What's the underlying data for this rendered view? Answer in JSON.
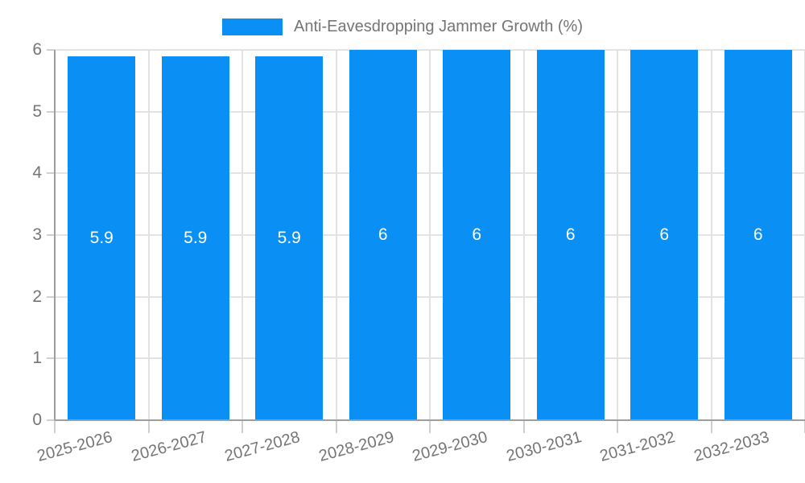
{
  "chart_data": {
    "type": "bar",
    "title": "Anti-Eavesdropping Jammer Growth (%)",
    "legend": {
      "position": "top",
      "label": "Anti-Eavesdropping Jammer Growth (%)"
    },
    "categories": [
      "2025-2026",
      "2026-2027",
      "2027-2028",
      "2028-2029",
      "2029-2030",
      "2030-2031",
      "2031-2032",
      "2032-2033"
    ],
    "values": [
      5.9,
      5.9,
      5.9,
      6,
      6,
      6,
      6,
      6
    ],
    "bar_labels": [
      "5.9",
      "5.9",
      "5.9",
      "6",
      "6",
      "6",
      "6",
      "6"
    ],
    "xlabel": "",
    "ylabel": "",
    "ylim": [
      0,
      6
    ],
    "yticks": [
      "0",
      "1",
      "2",
      "3",
      "4",
      "5",
      "6"
    ],
    "grid": true,
    "colors": {
      "bar": "#0a90f4",
      "grid": "#e3e3e3",
      "axis": "#9e9e9e",
      "tick_mark": "#cfcfcf",
      "tick_text": "#757575",
      "value_label": "#ffffff"
    }
  }
}
